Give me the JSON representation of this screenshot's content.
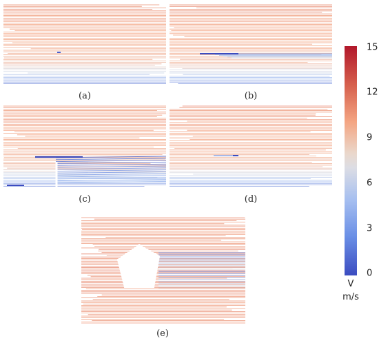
{
  "captions": {
    "a": "(a)",
    "b": "(b)",
    "c": "(c)",
    "d": "(d)",
    "e": "(e)"
  },
  "colorbar": {
    "ticks": [
      "15",
      "12",
      "9",
      "6",
      "3",
      "0"
    ],
    "quantity": "V",
    "unit": "m/s",
    "min": 0,
    "max": 15,
    "colors": {
      "high": "#b2182b",
      "mid_high": "#f4a582",
      "mid": "#dcdde4",
      "mid_low": "#a6bff0",
      "low": "#3b4cc0"
    }
  }
}
